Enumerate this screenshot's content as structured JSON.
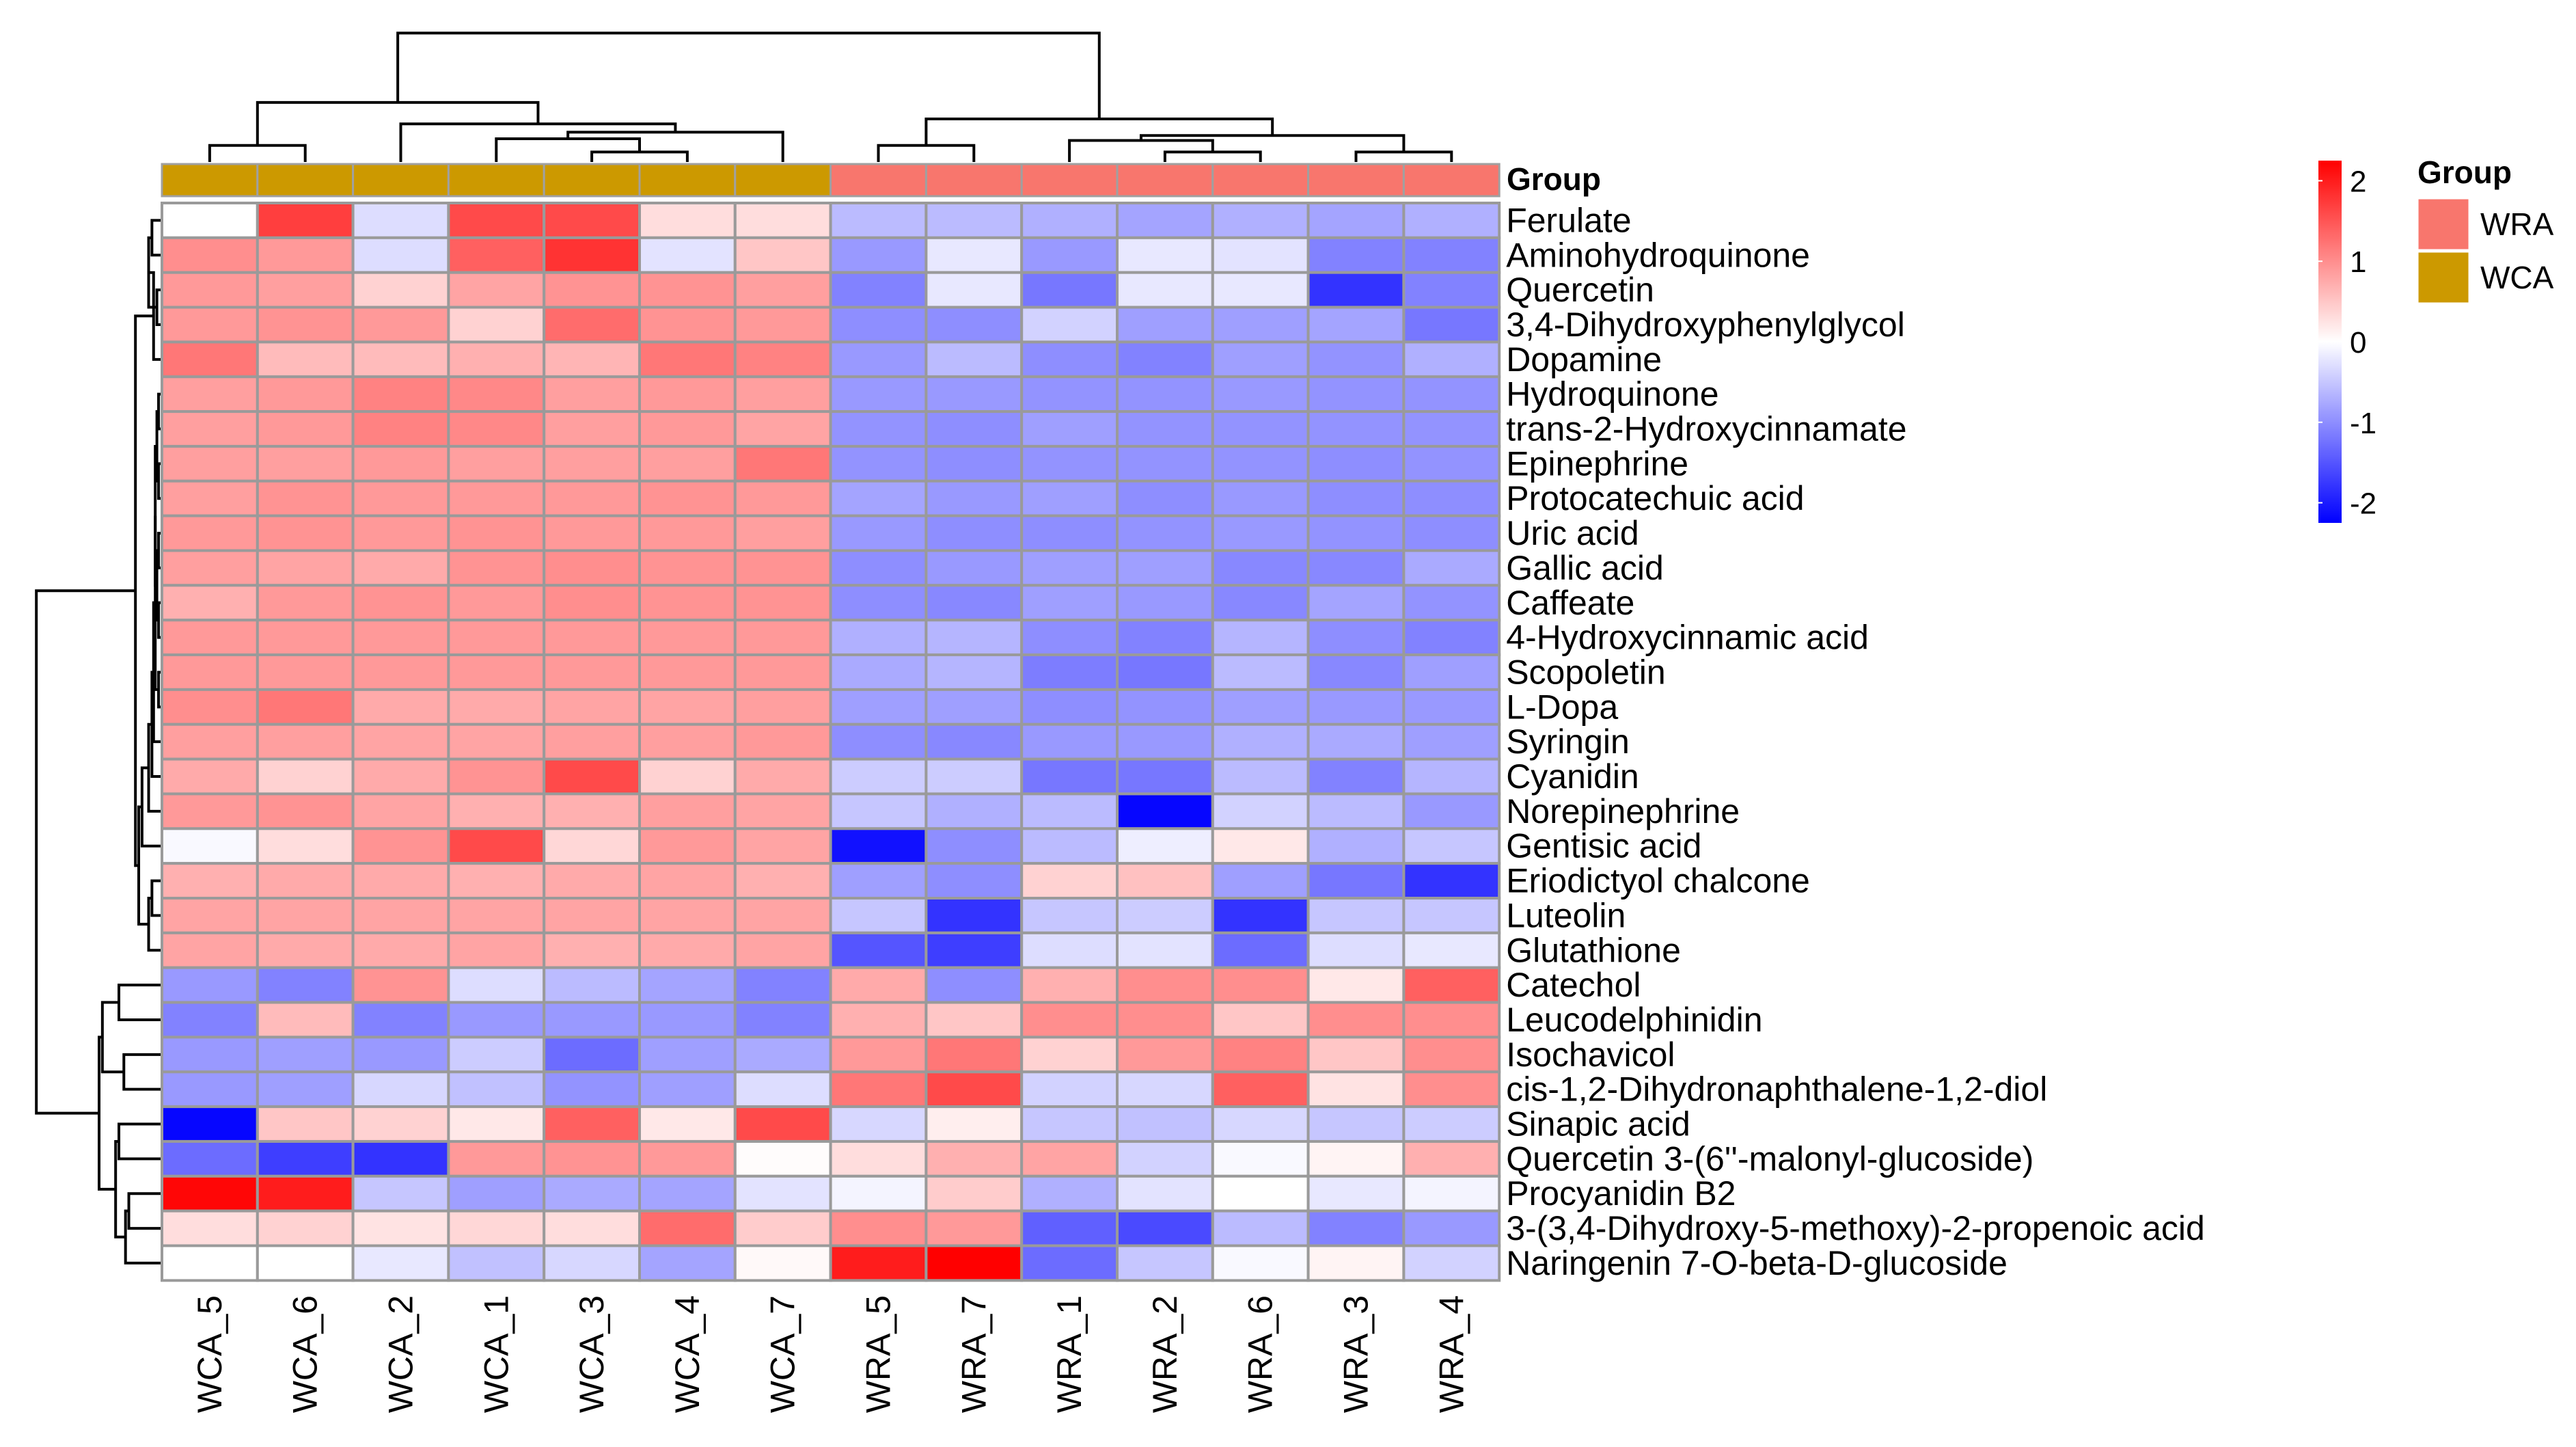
{
  "chart_data": {
    "type": "heatmap",
    "title": "",
    "columns": [
      "WCA_5",
      "WCA_6",
      "WCA_2",
      "WCA_1",
      "WCA_3",
      "WCA_4",
      "WCA_7",
      "WRA_5",
      "WRA_7",
      "WRA_1",
      "WRA_2",
      "WRA_6",
      "WRA_3",
      "WRA_4"
    ],
    "column_groups": [
      "WCA",
      "WCA",
      "WCA",
      "WCA",
      "WCA",
      "WCA",
      "WCA",
      "WRA",
      "WRA",
      "WRA",
      "WRA",
      "WRA",
      "WRA",
      "WRA"
    ],
    "annotation_label": "Group",
    "rows": [
      "Ferulate",
      "Aminohydroquinone",
      "Quercetin",
      "3,4-Dihydroxyphenylglycol",
      "Dopamine",
      "Hydroquinone",
      "trans-2-Hydroxycinnamate",
      "Epinephrine",
      "Protocatechuic acid",
      "Uric acid",
      "Gallic acid",
      "Caffeate",
      "4-Hydroxycinnamic acid",
      "Scopoletin",
      "L-Dopa",
      "Syringin",
      "Cyanidin",
      "Norepinephrine",
      "Gentisic acid",
      "Eriodictyol chalcone",
      "Luteolin",
      "Glutathione",
      "Catechol",
      "Leucodelphinidin",
      "Isochavicol",
      "cis-1,2-Dihydronaphthalene-1,2-diol",
      "Sinapic acid",
      "Quercetin 3-(6''-malonyl-glucoside)",
      "Procyanidin B2",
      "3-(3,4-Dihydroxy-5-methoxy)-2-propenoic acid",
      "Naringenin 7-O-beta-D-glucoside"
    ],
    "values": [
      [
        0,
        1.7,
        -0.3,
        1.6,
        1.6,
        0.3,
        0.3,
        -0.6,
        -0.6,
        -0.7,
        -0.8,
        -0.7,
        -0.8,
        -0.7
      ],
      [
        1.0,
        0.9,
        -0.3,
        1.4,
        1.8,
        -0.25,
        0.5,
        -0.9,
        -0.2,
        -0.9,
        -0.2,
        -0.25,
        -1.1,
        -1.1
      ],
      [
        0.9,
        0.85,
        0.4,
        0.8,
        0.95,
        0.95,
        0.85,
        -1.1,
        -0.2,
        -1.2,
        -0.2,
        -0.2,
        -1.8,
        -1.1
      ],
      [
        0.9,
        0.95,
        0.9,
        0.4,
        1.3,
        0.95,
        0.9,
        -1.0,
        -1.0,
        -0.4,
        -0.85,
        -0.85,
        -0.8,
        -1.2
      ],
      [
        1.2,
        0.6,
        0.6,
        0.7,
        0.65,
        1.2,
        1.1,
        -0.9,
        -0.6,
        -1.0,
        -1.1,
        -0.85,
        -0.95,
        -0.7
      ],
      [
        0.85,
        0.9,
        1.1,
        1.05,
        0.85,
        0.9,
        0.85,
        -0.9,
        -0.9,
        -0.95,
        -0.95,
        -0.9,
        -0.95,
        -0.95
      ],
      [
        0.85,
        0.9,
        1.1,
        1.05,
        0.85,
        0.9,
        0.8,
        -0.95,
        -1.0,
        -0.85,
        -0.95,
        -0.95,
        -0.95,
        -0.95
      ],
      [
        0.85,
        0.85,
        0.9,
        0.85,
        0.85,
        0.85,
        1.2,
        -0.95,
        -1.0,
        -0.95,
        -0.95,
        -0.95,
        -1.0,
        -0.95
      ],
      [
        0.85,
        0.95,
        0.9,
        0.9,
        0.9,
        0.95,
        0.9,
        -0.8,
        -0.9,
        -0.85,
        -1.0,
        -0.9,
        -1.0,
        -1.0
      ],
      [
        0.9,
        0.95,
        0.9,
        0.95,
        0.9,
        0.9,
        0.85,
        -0.9,
        -1.0,
        -1.0,
        -0.95,
        -0.9,
        -0.95,
        -1.0
      ],
      [
        0.85,
        0.8,
        0.75,
        0.95,
        1.0,
        0.95,
        0.95,
        -1.0,
        -0.9,
        -0.85,
        -0.85,
        -1.05,
        -1.05,
        -0.75
      ],
      [
        0.7,
        0.9,
        0.95,
        0.9,
        1.0,
        0.95,
        0.95,
        -1.0,
        -1.05,
        -0.85,
        -0.9,
        -1.05,
        -0.8,
        -0.95
      ],
      [
        0.9,
        0.9,
        0.9,
        0.9,
        0.9,
        0.9,
        0.9,
        -0.7,
        -0.65,
        -1.0,
        -1.1,
        -0.65,
        -1.0,
        -1.1
      ],
      [
        0.9,
        0.9,
        0.9,
        0.9,
        0.9,
        0.9,
        0.9,
        -0.75,
        -0.65,
        -1.15,
        -1.2,
        -0.6,
        -1.05,
        -0.85
      ],
      [
        1.0,
        1.2,
        0.75,
        0.75,
        0.8,
        0.8,
        0.85,
        -0.85,
        -0.85,
        -1.0,
        -0.95,
        -0.85,
        -0.9,
        -0.9
      ],
      [
        0.85,
        0.85,
        0.8,
        0.8,
        0.85,
        0.85,
        0.9,
        -1.0,
        -1.05,
        -0.9,
        -0.9,
        -0.7,
        -0.75,
        -0.85
      ],
      [
        0.75,
        0.4,
        0.75,
        0.95,
        1.6,
        0.4,
        0.75,
        -0.45,
        -0.45,
        -1.2,
        -1.2,
        -0.6,
        -1.1,
        -0.65
      ],
      [
        0.9,
        0.95,
        0.8,
        0.7,
        0.7,
        0.85,
        0.8,
        -0.5,
        -0.7,
        -0.6,
        -2.2,
        -0.4,
        -0.6,
        -0.9
      ],
      [
        -0.05,
        0.3,
        0.95,
        1.6,
        0.35,
        0.9,
        0.8,
        -2.1,
        -1.0,
        -0.6,
        -0.15,
        0.2,
        -0.7,
        -0.5
      ],
      [
        0.7,
        0.75,
        0.75,
        0.7,
        0.75,
        0.8,
        0.7,
        -0.85,
        -1.0,
        0.4,
        0.55,
        -0.85,
        -1.2,
        -1.8
      ],
      [
        0.8,
        0.8,
        0.8,
        0.8,
        0.8,
        0.8,
        0.8,
        -0.5,
        -1.8,
        -0.5,
        -0.45,
        -1.8,
        -0.5,
        -0.5
      ],
      [
        0.8,
        0.75,
        0.75,
        0.8,
        0.7,
        0.75,
        0.8,
        -1.5,
        -1.7,
        -0.3,
        -0.25,
        -1.3,
        -0.3,
        -0.2
      ],
      [
        -0.9,
        -1.1,
        0.95,
        -0.3,
        -0.6,
        -0.8,
        -1.1,
        0.75,
        -1.0,
        0.7,
        1.0,
        1.0,
        0.2,
        1.4
      ],
      [
        -1.1,
        0.6,
        -1.1,
        -0.9,
        -0.9,
        -0.9,
        -1.1,
        0.7,
        0.5,
        1.0,
        1.0,
        0.5,
        1.0,
        1.0
      ],
      [
        -0.9,
        -0.85,
        -0.9,
        -0.45,
        -1.3,
        -0.85,
        -0.75,
        0.9,
        1.2,
        0.4,
        0.9,
        1.1,
        0.5,
        1.0
      ],
      [
        -0.9,
        -0.85,
        -0.35,
        -0.55,
        -0.95,
        -0.85,
        -0.3,
        1.2,
        1.6,
        -0.4,
        -0.35,
        1.4,
        0.25,
        1.0
      ],
      [
        -2.2,
        0.5,
        0.4,
        0.2,
        1.4,
        0.2,
        1.6,
        -0.35,
        0.15,
        -0.5,
        -0.55,
        -0.35,
        -0.5,
        -0.45
      ],
      [
        -1.3,
        -1.7,
        -1.8,
        0.9,
        0.95,
        0.9,
        0.03,
        0.3,
        0.7,
        0.8,
        -0.4,
        -0.05,
        0.1,
        0.7
      ],
      [
        2.2,
        2.0,
        -0.5,
        -0.85,
        -0.75,
        -0.8,
        -0.25,
        -0.1,
        0.45,
        -0.7,
        -0.25,
        0,
        -0.2,
        -0.1
      ],
      [
        0.3,
        0.4,
        0.25,
        0.35,
        0.3,
        1.3,
        0.45,
        1.0,
        0.9,
        -1.4,
        -1.6,
        -0.6,
        -1.1,
        -0.9
      ],
      [
        0,
        0,
        -0.2,
        -0.55,
        -0.35,
        -0.8,
        0.05,
        2.0,
        2.3,
        -1.3,
        -0.5,
        -0.05,
        0.1,
        -0.4
      ]
    ],
    "color_scale": {
      "min": -2.25,
      "max": 2.25,
      "low": "#0000FF",
      "mid": "#FFFFFF",
      "high": "#FF0000",
      "ticks": [
        2,
        1,
        0,
        -1,
        -2
      ]
    },
    "legend": {
      "title": "Group",
      "entries": [
        {
          "label": "WRA",
          "color": "#F8766D"
        },
        {
          "label": "WCA",
          "color": "#CC9900"
        }
      ],
      "placement": "right"
    }
  }
}
